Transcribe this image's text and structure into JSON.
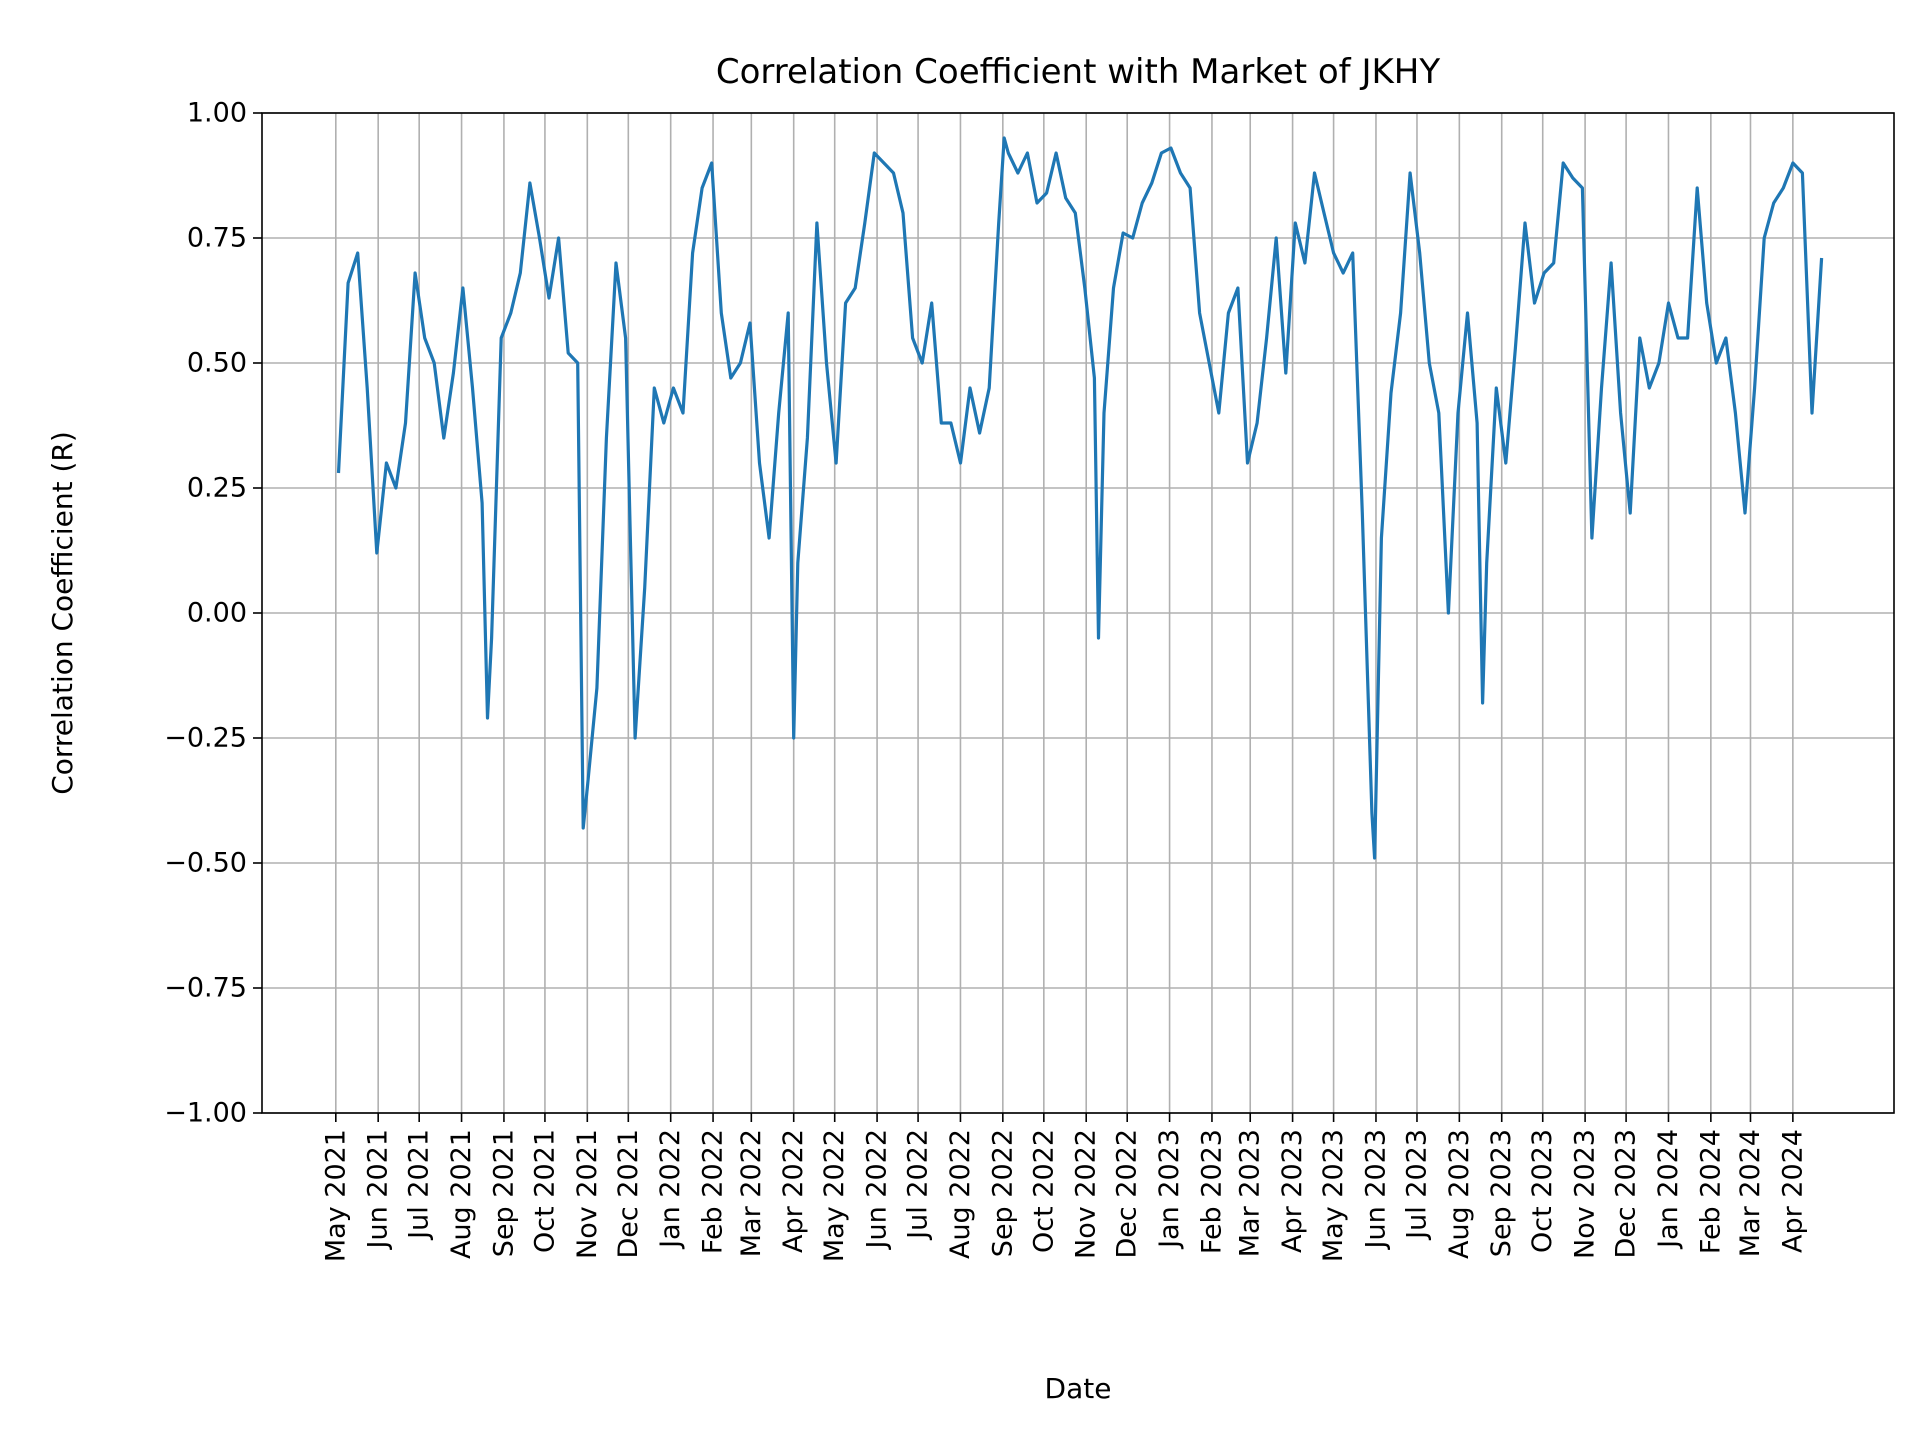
{
  "chart_data": {
    "type": "line",
    "title": "Correlation Coefficient with Market of JKHY",
    "xlabel": "Date",
    "ylabel": "Correlation Coefficient (R)",
    "ylim": [
      -1.0,
      1.0
    ],
    "xlim": [
      "2021-03-08",
      "2024-06-14"
    ],
    "grid": true,
    "line_color": "#1f77b4",
    "grid_color": "#b0b0b0",
    "yticks": [
      {
        "value": 1.0,
        "label": "1.00"
      },
      {
        "value": 0.75,
        "label": "0.75"
      },
      {
        "value": 0.5,
        "label": "0.50"
      },
      {
        "value": 0.25,
        "label": "0.25"
      },
      {
        "value": 0.0,
        "label": "0.00"
      },
      {
        "value": -0.25,
        "label": "−0.25"
      },
      {
        "value": -0.5,
        "label": "−0.50"
      },
      {
        "value": -0.75,
        "label": "−0.75"
      },
      {
        "value": -1.0,
        "label": "−1.00"
      }
    ],
    "xticks": [
      {
        "date": "2021-05-01",
        "label": "May 2021"
      },
      {
        "date": "2021-06-01",
        "label": "Jun 2021"
      },
      {
        "date": "2021-07-01",
        "label": "Jul 2021"
      },
      {
        "date": "2021-08-01",
        "label": "Aug 2021"
      },
      {
        "date": "2021-09-01",
        "label": "Sep 2021"
      },
      {
        "date": "2021-10-01",
        "label": "Oct 2021"
      },
      {
        "date": "2021-11-01",
        "label": "Nov 2021"
      },
      {
        "date": "2021-12-01",
        "label": "Dec 2021"
      },
      {
        "date": "2022-01-01",
        "label": "Jan 2022"
      },
      {
        "date": "2022-02-01",
        "label": "Feb 2022"
      },
      {
        "date": "2022-03-01",
        "label": "Mar 2022"
      },
      {
        "date": "2022-04-01",
        "label": "Apr 2022"
      },
      {
        "date": "2022-05-01",
        "label": "May 2022"
      },
      {
        "date": "2022-06-01",
        "label": "Jun 2022"
      },
      {
        "date": "2022-07-01",
        "label": "Jul 2022"
      },
      {
        "date": "2022-08-01",
        "label": "Aug 2022"
      },
      {
        "date": "2022-09-01",
        "label": "Sep 2022"
      },
      {
        "date": "2022-10-01",
        "label": "Oct 2022"
      },
      {
        "date": "2022-11-01",
        "label": "Nov 2022"
      },
      {
        "date": "2022-12-01",
        "label": "Dec 2022"
      },
      {
        "date": "2023-01-01",
        "label": "Jan 2023"
      },
      {
        "date": "2023-02-01",
        "label": "Feb 2023"
      },
      {
        "date": "2023-03-01",
        "label": "Mar 2023"
      },
      {
        "date": "2023-04-01",
        "label": "Apr 2023"
      },
      {
        "date": "2023-05-01",
        "label": "May 2023"
      },
      {
        "date": "2023-06-01",
        "label": "Jun 2023"
      },
      {
        "date": "2023-07-01",
        "label": "Jul 2023"
      },
      {
        "date": "2023-08-01",
        "label": "Aug 2023"
      },
      {
        "date": "2023-09-01",
        "label": "Sep 2023"
      },
      {
        "date": "2023-10-01",
        "label": "Oct 2023"
      },
      {
        "date": "2023-11-01",
        "label": "Nov 2023"
      },
      {
        "date": "2023-12-01",
        "label": "Dec 2023"
      },
      {
        "date": "2024-01-01",
        "label": "Jan 2024"
      },
      {
        "date": "2024-02-01",
        "label": "Feb 2024"
      },
      {
        "date": "2024-03-01",
        "label": "Mar 2024"
      },
      {
        "date": "2024-04-01",
        "label": "Apr 2024"
      }
    ],
    "series": [
      {
        "points": [
          [
            "2021-05-03",
            0.28
          ],
          [
            "2021-05-10",
            0.66
          ],
          [
            "2021-05-17",
            0.72
          ],
          [
            "2021-05-24",
            0.45
          ],
          [
            "2021-05-31",
            0.12
          ],
          [
            "2021-06-07",
            0.3
          ],
          [
            "2021-06-14",
            0.25
          ],
          [
            "2021-06-21",
            0.38
          ],
          [
            "2021-06-28",
            0.68
          ],
          [
            "2021-07-05",
            0.55
          ],
          [
            "2021-07-12",
            0.5
          ],
          [
            "2021-07-19",
            0.35
          ],
          [
            "2021-07-26",
            0.48
          ],
          [
            "2021-08-02",
            0.65
          ],
          [
            "2021-08-09",
            0.45
          ],
          [
            "2021-08-16",
            0.22
          ],
          [
            "2021-08-20",
            -0.21
          ],
          [
            "2021-08-23",
            -0.05
          ],
          [
            "2021-08-30",
            0.55
          ],
          [
            "2021-09-06",
            0.6
          ],
          [
            "2021-09-13",
            0.68
          ],
          [
            "2021-09-20",
            0.86
          ],
          [
            "2021-09-27",
            0.75
          ],
          [
            "2021-10-04",
            0.63
          ],
          [
            "2021-10-11",
            0.75
          ],
          [
            "2021-10-18",
            0.52
          ],
          [
            "2021-10-25",
            0.5
          ],
          [
            "2021-10-29",
            -0.43
          ],
          [
            "2021-11-01",
            -0.35
          ],
          [
            "2021-11-08",
            -0.15
          ],
          [
            "2021-11-15",
            0.35
          ],
          [
            "2021-11-22",
            0.7
          ],
          [
            "2021-11-29",
            0.55
          ],
          [
            "2021-12-06",
            -0.25
          ],
          [
            "2021-12-13",
            0.05
          ],
          [
            "2021-12-20",
            0.45
          ],
          [
            "2021-12-27",
            0.38
          ],
          [
            "2022-01-03",
            0.45
          ],
          [
            "2022-01-10",
            0.4
          ],
          [
            "2022-01-17",
            0.72
          ],
          [
            "2022-01-24",
            0.85
          ],
          [
            "2022-01-31",
            0.9
          ],
          [
            "2022-02-07",
            0.6
          ],
          [
            "2022-02-14",
            0.47
          ],
          [
            "2022-02-21",
            0.5
          ],
          [
            "2022-02-28",
            0.58
          ],
          [
            "2022-03-07",
            0.3
          ],
          [
            "2022-03-14",
            0.15
          ],
          [
            "2022-03-21",
            0.4
          ],
          [
            "2022-03-28",
            0.6
          ],
          [
            "2022-04-01",
            -0.25
          ],
          [
            "2022-04-04",
            0.1
          ],
          [
            "2022-04-11",
            0.35
          ],
          [
            "2022-04-18",
            0.78
          ],
          [
            "2022-04-25",
            0.5
          ],
          [
            "2022-05-02",
            0.3
          ],
          [
            "2022-05-09",
            0.62
          ],
          [
            "2022-05-16",
            0.65
          ],
          [
            "2022-05-23",
            0.78
          ],
          [
            "2022-05-30",
            0.92
          ],
          [
            "2022-06-06",
            0.9
          ],
          [
            "2022-06-13",
            0.88
          ],
          [
            "2022-06-20",
            0.8
          ],
          [
            "2022-06-27",
            0.55
          ],
          [
            "2022-07-04",
            0.5
          ],
          [
            "2022-07-11",
            0.62
          ],
          [
            "2022-07-18",
            0.38
          ],
          [
            "2022-07-25",
            0.38
          ],
          [
            "2022-08-01",
            0.3
          ],
          [
            "2022-08-08",
            0.45
          ],
          [
            "2022-08-15",
            0.36
          ],
          [
            "2022-08-22",
            0.45
          ],
          [
            "2022-08-29",
            0.78
          ],
          [
            "2022-09-02",
            0.95
          ],
          [
            "2022-09-05",
            0.92
          ],
          [
            "2022-09-12",
            0.88
          ],
          [
            "2022-09-19",
            0.92
          ],
          [
            "2022-09-26",
            0.82
          ],
          [
            "2022-10-03",
            0.84
          ],
          [
            "2022-10-10",
            0.92
          ],
          [
            "2022-10-17",
            0.83
          ],
          [
            "2022-10-24",
            0.8
          ],
          [
            "2022-10-31",
            0.65
          ],
          [
            "2022-11-07",
            0.47
          ],
          [
            "2022-11-10",
            -0.05
          ],
          [
            "2022-11-14",
            0.4
          ],
          [
            "2022-11-21",
            0.65
          ],
          [
            "2022-11-28",
            0.76
          ],
          [
            "2022-12-05",
            0.75
          ],
          [
            "2022-12-12",
            0.82
          ],
          [
            "2022-12-19",
            0.86
          ],
          [
            "2022-12-26",
            0.92
          ],
          [
            "2023-01-02",
            0.93
          ],
          [
            "2023-01-09",
            0.88
          ],
          [
            "2023-01-16",
            0.85
          ],
          [
            "2023-01-23",
            0.6
          ],
          [
            "2023-01-30",
            0.5
          ],
          [
            "2023-02-06",
            0.4
          ],
          [
            "2023-02-13",
            0.6
          ],
          [
            "2023-02-20",
            0.65
          ],
          [
            "2023-02-27",
            0.3
          ],
          [
            "2023-03-06",
            0.38
          ],
          [
            "2023-03-13",
            0.55
          ],
          [
            "2023-03-20",
            0.75
          ],
          [
            "2023-03-27",
            0.48
          ],
          [
            "2023-04-03",
            0.78
          ],
          [
            "2023-04-10",
            0.7
          ],
          [
            "2023-04-17",
            0.88
          ],
          [
            "2023-04-24",
            0.8
          ],
          [
            "2023-05-01",
            0.72
          ],
          [
            "2023-05-08",
            0.68
          ],
          [
            "2023-05-15",
            0.72
          ],
          [
            "2023-05-22",
            0.2
          ],
          [
            "2023-05-29",
            -0.4
          ],
          [
            "2023-05-31",
            -0.49
          ],
          [
            "2023-06-05",
            0.15
          ],
          [
            "2023-06-12",
            0.44
          ],
          [
            "2023-06-19",
            0.6
          ],
          [
            "2023-06-26",
            0.88
          ],
          [
            "2023-07-03",
            0.72
          ],
          [
            "2023-07-10",
            0.5
          ],
          [
            "2023-07-17",
            0.4
          ],
          [
            "2023-07-24",
            0.0
          ],
          [
            "2023-07-31",
            0.4
          ],
          [
            "2023-08-07",
            0.6
          ],
          [
            "2023-08-14",
            0.38
          ],
          [
            "2023-08-18",
            -0.18
          ],
          [
            "2023-08-21",
            0.1
          ],
          [
            "2023-08-28",
            0.45
          ],
          [
            "2023-09-04",
            0.3
          ],
          [
            "2023-09-11",
            0.53
          ],
          [
            "2023-09-18",
            0.78
          ],
          [
            "2023-09-25",
            0.62
          ],
          [
            "2023-10-02",
            0.68
          ],
          [
            "2023-10-09",
            0.7
          ],
          [
            "2023-10-16",
            0.9
          ],
          [
            "2023-10-23",
            0.87
          ],
          [
            "2023-10-30",
            0.85
          ],
          [
            "2023-11-06",
            0.15
          ],
          [
            "2023-11-13",
            0.45
          ],
          [
            "2023-11-20",
            0.7
          ],
          [
            "2023-11-27",
            0.4
          ],
          [
            "2023-12-04",
            0.2
          ],
          [
            "2023-12-11",
            0.55
          ],
          [
            "2023-12-18",
            0.45
          ],
          [
            "2023-12-25",
            0.5
          ],
          [
            "2024-01-01",
            0.62
          ],
          [
            "2024-01-08",
            0.55
          ],
          [
            "2024-01-15",
            0.55
          ],
          [
            "2024-01-22",
            0.85
          ],
          [
            "2024-01-29",
            0.62
          ],
          [
            "2024-02-05",
            0.5
          ],
          [
            "2024-02-12",
            0.55
          ],
          [
            "2024-02-19",
            0.4
          ],
          [
            "2024-02-26",
            0.2
          ],
          [
            "2024-03-04",
            0.45
          ],
          [
            "2024-03-11",
            0.75
          ],
          [
            "2024-03-18",
            0.82
          ],
          [
            "2024-03-25",
            0.85
          ],
          [
            "2024-04-01",
            0.9
          ],
          [
            "2024-04-08",
            0.88
          ],
          [
            "2024-04-15",
            0.4
          ],
          [
            "2024-04-22",
            0.71
          ]
        ]
      }
    ]
  }
}
